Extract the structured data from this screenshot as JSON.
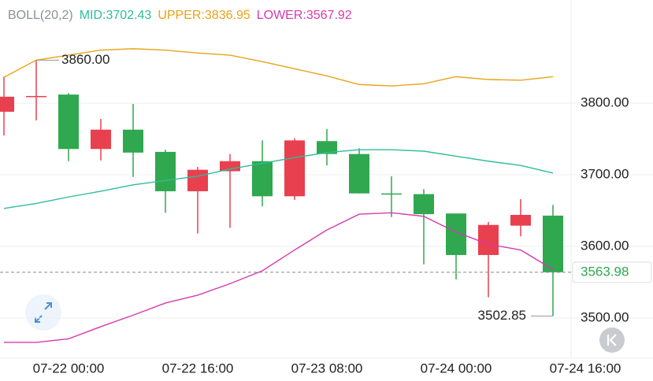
{
  "chart_data": {
    "type": "candlestick",
    "legend": [
      "BOLL(20,2)",
      "MID:3702.43",
      "UPPER:3836.95",
      "LOWER:3567.92"
    ],
    "legend_colors": [
      "#8a8f99",
      "#2ebd9b",
      "#e8a317",
      "#d63ab0"
    ],
    "categories": [
      null,
      null,
      "07-22 00:00",
      null,
      null,
      null,
      "07-22 16:00",
      null,
      null,
      null,
      "07-23 08:00",
      null,
      null,
      null,
      "07-24 00:00",
      null,
      null,
      null,
      "07-24 16:00"
    ],
    "open": [
      3788,
      3809,
      3812,
      3736,
      3763,
      3732,
      3677,
      3705,
      3719,
      3670,
      3747,
      3729,
      3674,
      3673,
      3646,
      3588,
      3629,
      3643,
      null
    ],
    "high": [
      3837,
      3860,
      3814,
      3778,
      3799,
      3735,
      3711,
      3729,
      3748,
      3751,
      3764,
      3737,
      3698,
      3680,
      3646,
      3634,
      3666,
      3658,
      null
    ],
    "low": [
      3755,
      3776,
      3719,
      3720,
      3697,
      3647,
      3618,
      3626,
      3656,
      3665,
      3713,
      3674,
      3641,
      3575,
      3554,
      3529,
      3614,
      3502.85,
      null
    ],
    "close": [
      3809,
      3810,
      3736,
      3763,
      3731,
      3677,
      3707,
      3719,
      3670,
      3748,
      3729,
      3674,
      3673,
      3645,
      3588,
      3630,
      3644,
      3563.98,
      null
    ],
    "up_color": "#e8404f",
    "down_color": "#2fa84f",
    "series": [
      {
        "name": "UPPER",
        "color": "#e8a317",
        "values": [
          3836,
          3860,
          3867,
          3874,
          3876,
          3874,
          3870,
          3867,
          3858,
          3848,
          3838,
          3826,
          3824,
          3827,
          3837,
          3833,
          3832,
          3836.95,
          null
        ]
      },
      {
        "name": "MID",
        "color": "#2ebd9b",
        "values": [
          3653,
          3660,
          3669,
          3677,
          3686,
          3692,
          3698,
          3708,
          3716,
          3724,
          3731,
          3735,
          3735,
          3733,
          3726,
          3719,
          3713,
          3702.43,
          null
        ]
      },
      {
        "name": "LOWER",
        "color": "#d63ab0",
        "values": [
          3466,
          3466,
          3471,
          3488,
          3504,
          3521,
          3532,
          3548,
          3566,
          3595,
          3623,
          3645,
          3647,
          3642,
          3620,
          3603,
          3595,
          3567.92,
          null
        ]
      }
    ],
    "ylim": [
      3444,
      3944
    ],
    "yticks": [
      {
        "value": 3500,
        "label": "3500.00"
      },
      {
        "value": 3600,
        "label": "3600.00"
      },
      {
        "value": 3700,
        "label": "3700.00"
      },
      {
        "value": 3800,
        "label": "3800.00"
      }
    ],
    "grid": true,
    "annotations": [
      {
        "value": 3860,
        "label": "3860.00"
      }
    ]
  }
}
